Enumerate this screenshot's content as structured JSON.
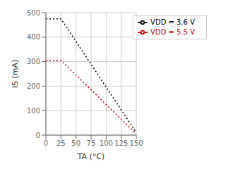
{
  "chart_data": {
    "type": "line",
    "x": [
      0,
      25,
      150
    ],
    "series": [
      {
        "name": "VDD = 3.6 V",
        "color": "#000000",
        "line_style": "dotted",
        "values": [
          475,
          475,
          10
        ]
      },
      {
        "name": "VDD = 5.5 V",
        "color": "#cc0000",
        "line_style": "dotted",
        "values": [
          305,
          305,
          5
        ]
      }
    ],
    "xlabel": "TA (°C)",
    "ylabel": "IS (mA)",
    "xlim": [
      0,
      150
    ],
    "ylim": [
      0,
      500
    ],
    "xticks": [
      0,
      25,
      50,
      75,
      100,
      125,
      150
    ],
    "yticks": [
      0,
      100,
      200,
      300,
      400,
      500
    ],
    "grid": true,
    "legend": "upper right"
  }
}
